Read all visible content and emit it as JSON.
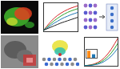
{
  "chart_data": [
    {
      "type": "line",
      "tick_labels": false,
      "grid": false,
      "xlim": [
        0,
        10
      ],
      "ylim": [
        0,
        10
      ],
      "xticks": [],
      "yticks": [],
      "x": [
        0,
        1,
        2,
        3,
        4,
        5,
        6,
        7,
        8,
        9,
        10
      ],
      "series": [
        {
          "color": "#d62728",
          "values": [
            0.5,
            2.0,
            3.4,
            4.6,
            5.6,
            6.4,
            7.1,
            7.7,
            8.2,
            8.6,
            9.0
          ]
        },
        {
          "color": "#2ca02c",
          "values": [
            0.5,
            1.6,
            2.7,
            3.7,
            4.6,
            5.4,
            6.1,
            6.7,
            7.2,
            7.6,
            8.0
          ]
        },
        {
          "color": "#1f77b4",
          "values": [
            0.5,
            1.3,
            2.1,
            2.9,
            3.6,
            4.3,
            4.9,
            5.4,
            5.9,
            6.3,
            6.7
          ]
        },
        {
          "color": "#222222",
          "values": [
            0.5,
            1.0,
            1.5,
            2.0,
            2.5,
            3.0,
            3.4,
            3.8,
            4.2,
            4.6,
            5.0
          ]
        }
      ]
    },
    {
      "type": "line",
      "tick_labels": false,
      "grid": false,
      "xlim": [
        0,
        10
      ],
      "ylim": [
        0,
        10
      ],
      "xticks": [],
      "yticks": [],
      "x": [
        0,
        1,
        2,
        3,
        4,
        5,
        6,
        7,
        8,
        9,
        10
      ],
      "series": [
        {
          "color": "#d62728",
          "values": [
            0.2,
            0.3,
            0.5,
            0.8,
            1.3,
            2.0,
            3.0,
            4.3,
            5.9,
            7.8,
            9.8
          ]
        },
        {
          "color": "#2ca02c",
          "values": [
            0.2,
            0.3,
            0.4,
            0.6,
            1.0,
            1.5,
            2.3,
            3.3,
            4.6,
            6.2,
            8.0
          ]
        },
        {
          "color": "#1f77b4",
          "values": [
            0.2,
            0.2,
            0.3,
            0.5,
            0.7,
            1.1,
            1.7,
            2.5,
            3.5,
            4.8,
            6.3
          ]
        }
      ]
    },
    {
      "type": "bar",
      "tick_labels": false,
      "grid": false,
      "categories": [
        null,
        null
      ],
      "values": [
        8,
        4
      ],
      "colors": [
        "#ff8c1a",
        "#1f77b4"
      ],
      "ylim": [
        0,
        10
      ],
      "yticks": []
    }
  ]
}
